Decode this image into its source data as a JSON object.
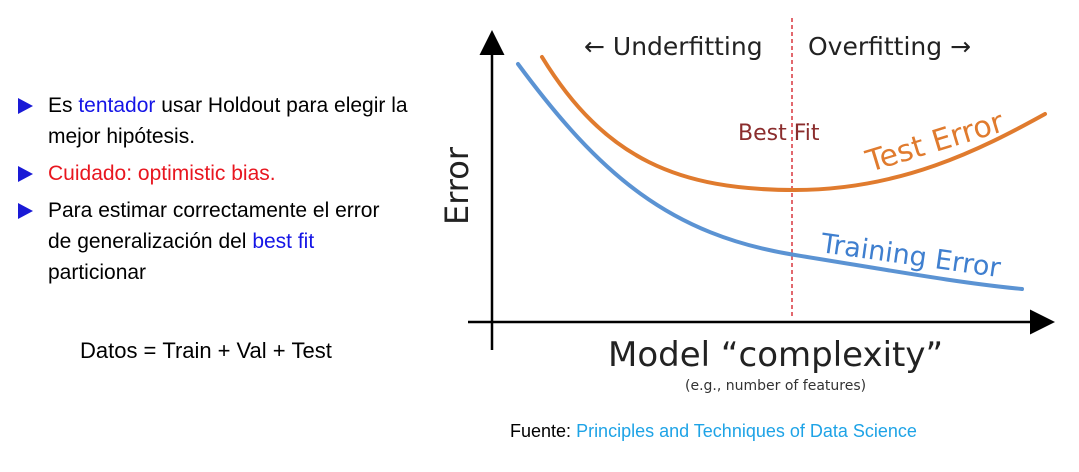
{
  "bullets": [
    {
      "parts": [
        {
          "text": "Es ",
          "color": "default"
        },
        {
          "text": "tentador",
          "color": "blue"
        },
        {
          "text": " usar Holdout para elegir la mejor hipótesis.",
          "color": "default"
        }
      ]
    },
    {
      "parts": [
        {
          "text": "Cuidado: optimistic bias.",
          "color": "red"
        }
      ]
    },
    {
      "parts": [
        {
          "text": "Para estimar correctamente el error de generalización del ",
          "color": "default"
        },
        {
          "text": "best fit",
          "color": "blue"
        },
        {
          "text": " particionar",
          "color": "default"
        }
      ]
    }
  ],
  "equation": {
    "lhs": "Datos",
    "eq": "=",
    "terms": [
      "Train",
      "+",
      "Val",
      "+",
      "Test"
    ]
  },
  "diagram": {
    "y_axis_label": "Error",
    "x_axis_label": "Model “complexity”",
    "x_axis_sublabel": "(e.g., number of features)",
    "left_region": "← Underfitting",
    "right_region": "Overfitting →",
    "best_fit_label": "Best Fit",
    "test_curve_label": "Test Error",
    "training_curve_label": "Training Error",
    "colors": {
      "test": "#e07b2e",
      "training": "#5b93d3",
      "best_fit_line": "#d9363e",
      "best_fit_text": "#8b2d2d",
      "axis": "#000000"
    }
  },
  "source": {
    "prefix": "Fuente:",
    "link_text": "Principles and Techniques of Data Science"
  }
}
